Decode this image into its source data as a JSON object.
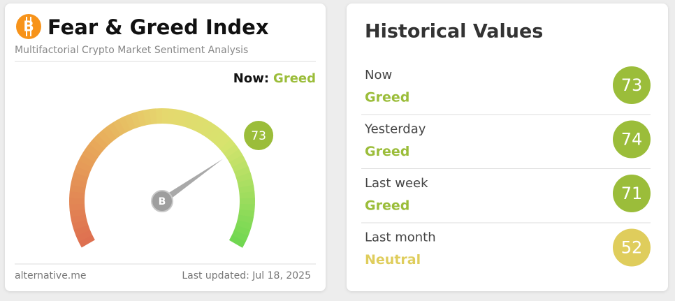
{
  "gauge_card": {
    "title": "Fear & Greed Index",
    "subtitle": "Multifactorial Crypto Market Sentiment Analysis",
    "now_label": "Now:",
    "now_status": "Greed",
    "status_color": "#9bbd3a",
    "value": 73,
    "lim": [
      0,
      100
    ],
    "source": "alternative.me",
    "last_updated": "Last updated: Jul 18, 2025"
  },
  "history_card": {
    "title": "Historical Values",
    "rows": [
      {
        "period": "Now",
        "status": "Greed",
        "value": 73,
        "color": "#9bbd3a"
      },
      {
        "period": "Yesterday",
        "status": "Greed",
        "value": 74,
        "color": "#9bbd3a"
      },
      {
        "period": "Last week",
        "status": "Greed",
        "value": 71,
        "color": "#9bbd3a"
      },
      {
        "period": "Last month",
        "status": "Neutral",
        "value": 52,
        "color": "#dfcd5c"
      }
    ]
  }
}
